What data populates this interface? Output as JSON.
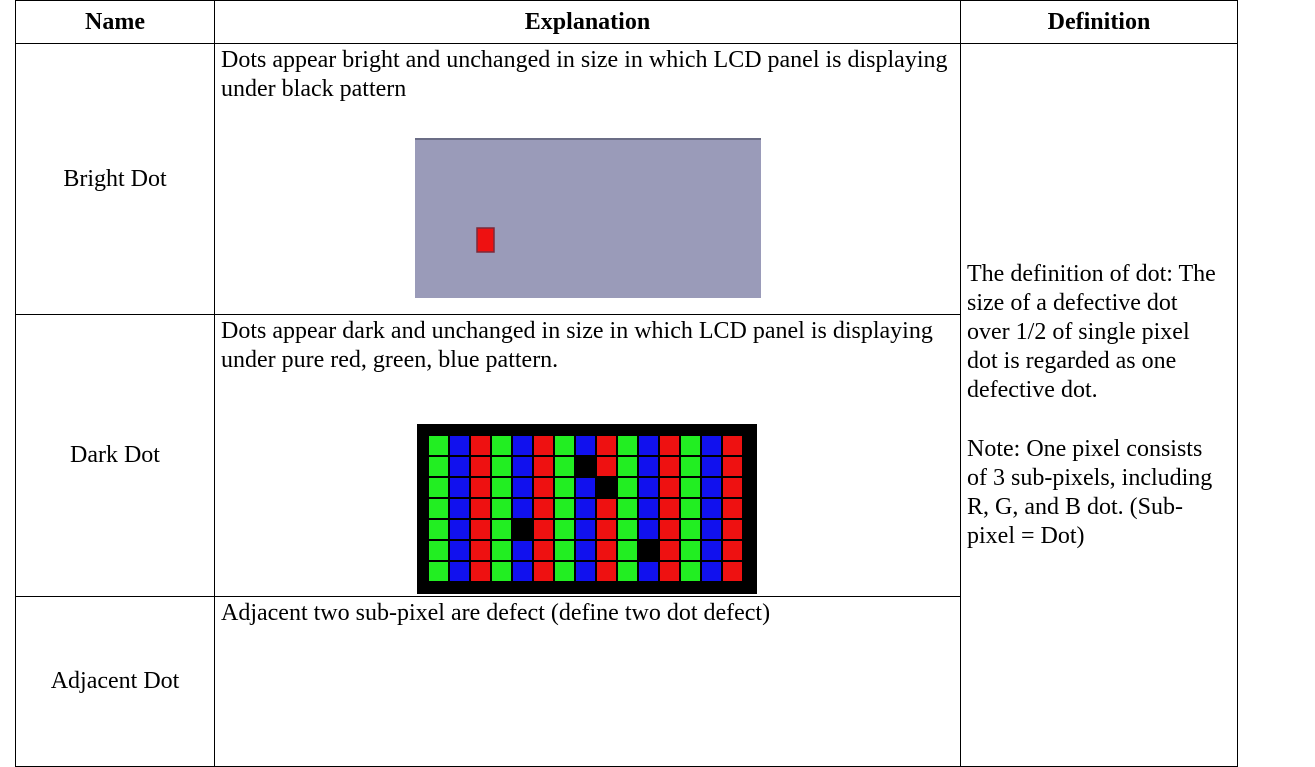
{
  "table": {
    "header": [
      "Name",
      "Explanation",
      "Definition"
    ],
    "rows": [
      [
        "Bright Dot",
        "Dots appear bright and unchanged in size in which LCD panel is displaying under black pattern"
      ],
      [
        "Dark Dot",
        "Dots appear dark and unchanged in size in which LCD panel is displaying under pure red, green, blue pattern."
      ],
      [
        "Adjacent Dot",
        "Adjacent two sub-pixel are defect (define two dot defect)"
      ]
    ],
    "definition": [
      "The definition of dot: The size of a defective dot over 1/2 of single pixel dot is regarded as one defective dot.",
      "Note: One pixel consists of 3 sub-pixels, including R, G, and B dot. (Sub-pixel = Dot)"
    ]
  }
}
